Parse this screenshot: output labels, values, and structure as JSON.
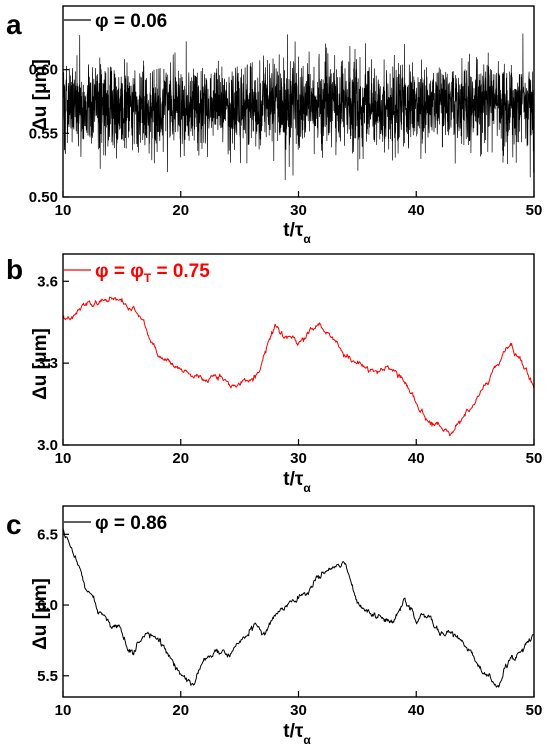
{
  "chart_data": [
    {
      "type": "line",
      "panel_label": "a",
      "xlabel": "t/τ",
      "xlabel_subscript": "α",
      "ylabel": "Δu [μm]",
      "xlim": [
        10,
        50
      ],
      "ylim": [
        0.5,
        0.65
      ],
      "xticks": [
        10,
        20,
        30,
        40,
        50
      ],
      "yticks": [
        0.5,
        0.55,
        0.6
      ],
      "ytick_labels": [
        "0.50",
        "0.55",
        "0.60"
      ],
      "grid": false,
      "legend_position": "top-left",
      "series": [
        {
          "name": "φ = 0.06",
          "color": "#000000",
          "x": [
            10,
            50
          ],
          "y": [
            0.572,
            0.572
          ],
          "fluctuation": "high-frequency noise about 0.572, mostly within 0.54–0.61, extremes about 0.50–0.63"
        }
      ]
    },
    {
      "type": "line",
      "panel_label": "b",
      "xlabel": "t/τ",
      "xlabel_subscript": "α",
      "ylabel": "Δu [μm]",
      "xlim": [
        10,
        50
      ],
      "ylim": [
        3.0,
        3.7
      ],
      "xticks": [
        10,
        20,
        30,
        40,
        50
      ],
      "yticks": [
        3.0,
        3.3,
        3.6
      ],
      "ytick_labels": [
        "3.0",
        "3.3",
        "3.6"
      ],
      "grid": false,
      "legend_position": "top-left",
      "series": [
        {
          "name": "φ = φT = 0.75",
          "name_parts": [
            "φ = φ",
            "T",
            " = 0.75"
          ],
          "color": "#ff0000",
          "x": [
            10,
            11,
            12,
            13,
            14,
            15,
            16,
            17,
            18,
            19,
            20,
            21,
            22,
            23,
            24,
            25,
            26,
            27,
            28,
            29,
            30,
            31,
            32,
            33,
            34,
            35,
            36,
            37,
            38,
            39,
            40,
            41,
            42,
            43,
            44,
            45,
            46,
            47,
            48,
            49,
            50
          ],
          "y": [
            3.48,
            3.49,
            3.52,
            3.54,
            3.55,
            3.53,
            3.49,
            3.43,
            3.34,
            3.3,
            3.27,
            3.25,
            3.24,
            3.25,
            3.23,
            3.22,
            3.25,
            3.31,
            3.44,
            3.38,
            3.36,
            3.4,
            3.4,
            3.38,
            3.33,
            3.29,
            3.27,
            3.3,
            3.26,
            3.23,
            3.16,
            3.11,
            3.08,
            3.05,
            3.1,
            3.15,
            3.22,
            3.3,
            3.38,
            3.29,
            3.22
          ]
        }
      ]
    },
    {
      "type": "line",
      "panel_label": "c",
      "xlabel": "t/τ",
      "xlabel_subscript": "α",
      "ylabel": "Δu [μm]",
      "xlim": [
        10,
        50
      ],
      "ylim": [
        5.35,
        6.7
      ],
      "xticks": [
        10,
        20,
        30,
        40,
        50
      ],
      "yticks": [
        5.5,
        6.0,
        6.5
      ],
      "ytick_labels": [
        "5.5",
        "6.0",
        "6.5"
      ],
      "grid": false,
      "legend_position": "top-left",
      "series": [
        {
          "name": "φ = 0.86",
          "color": "#000000",
          "x": [
            10,
            11,
            12,
            13,
            14,
            15,
            16,
            17,
            18,
            19,
            20,
            21,
            22,
            23,
            24,
            25,
            26,
            27,
            28,
            29,
            30,
            31,
            32,
            33,
            34,
            35,
            36,
            37,
            38,
            39,
            40,
            41,
            42,
            43,
            44,
            45,
            46,
            47,
            48,
            49,
            50
          ],
          "y": [
            6.55,
            6.35,
            6.15,
            5.97,
            5.88,
            5.78,
            5.62,
            5.85,
            5.78,
            5.62,
            5.52,
            5.42,
            5.6,
            5.65,
            5.68,
            5.73,
            5.82,
            5.82,
            5.92,
            5.97,
            6.05,
            6.12,
            6.2,
            6.28,
            6.32,
            6.05,
            5.95,
            5.9,
            5.85,
            6.02,
            5.9,
            5.95,
            5.82,
            5.75,
            5.7,
            5.6,
            5.5,
            5.42,
            5.62,
            5.7,
            5.8
          ]
        }
      ]
    }
  ]
}
